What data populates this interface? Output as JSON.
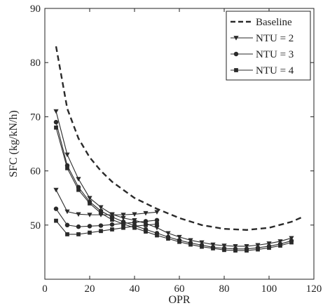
{
  "chart_data": {
    "type": "line",
    "xlabel": "OPR",
    "ylabel": "SFC (kg/kN/h)",
    "xlim": [
      0,
      120
    ],
    "ylim": [
      40,
      90
    ],
    "xticks": [
      0,
      20,
      40,
      60,
      80,
      100,
      120
    ],
    "yticks": [
      50,
      60,
      70,
      80,
      90
    ],
    "grid": false,
    "legend_position": "top-right",
    "colors": {
      "axis": "#222222",
      "lines": "#2a2a2a"
    },
    "series": [
      {
        "name": "Baseline",
        "style": "dashed",
        "marker": "none",
        "x": [
          5,
          10,
          15,
          20,
          25,
          30,
          40,
          50,
          60,
          70,
          80,
          90,
          100,
          110,
          115
        ],
        "y": [
          83,
          71.5,
          66,
          62.5,
          60,
          58,
          55,
          53,
          51.3,
          50,
          49.3,
          49.1,
          49.5,
          50.6,
          51.5
        ]
      },
      {
        "name": "NTU = 2",
        "style": "solid",
        "marker": "triangle-down",
        "x": [
          5,
          10,
          15,
          20,
          25,
          30,
          35,
          40,
          45,
          50,
          55,
          60,
          65,
          70,
          75,
          80,
          85,
          90,
          95,
          100,
          105,
          110
        ],
        "y": [
          71,
          63,
          58.5,
          55,
          53.3,
          52,
          51.3,
          50.9,
          50.3,
          49.5,
          48.5,
          47.8,
          47.2,
          46.8,
          46.4,
          46.2,
          46.1,
          46.1,
          46.3,
          46.6,
          47,
          47.6
        ]
      },
      {
        "name": "NTU = 3",
        "style": "solid",
        "marker": "circle",
        "x": [
          5,
          10,
          15,
          20,
          25,
          30,
          35,
          40,
          45,
          50,
          55,
          60,
          65,
          70,
          75,
          80,
          85,
          90,
          95,
          100,
          105,
          110
        ],
        "y": [
          69,
          61,
          57,
          54.3,
          52.6,
          51.5,
          50.6,
          49.9,
          49.2,
          48.5,
          47.8,
          47.2,
          46.7,
          46.3,
          45.9,
          45.7,
          45.6,
          45.6,
          45.8,
          46.1,
          46.5,
          47.1
        ]
      },
      {
        "name": "NTU = 4",
        "style": "solid",
        "marker": "square",
        "x": [
          5,
          10,
          15,
          20,
          25,
          30,
          35,
          40,
          45,
          50,
          55,
          60,
          65,
          70,
          75,
          80,
          85,
          90,
          95,
          100,
          105,
          110
        ],
        "y": [
          68,
          60.5,
          56.5,
          54,
          52.2,
          51,
          50.2,
          49.5,
          48.8,
          48.1,
          47.5,
          46.9,
          46.4,
          46,
          45.7,
          45.4,
          45.3,
          45.3,
          45.5,
          45.8,
          46.2,
          46.8
        ]
      },
      {
        "name": "",
        "style": "solid",
        "marker": "triangle-down",
        "x": [
          5,
          10,
          15,
          20,
          25,
          30,
          35,
          40,
          45,
          50
        ],
        "y": [
          56.5,
          52.5,
          52,
          51.9,
          51.9,
          51.9,
          51.9,
          52,
          52.2,
          52.4
        ]
      },
      {
        "name": "",
        "style": "solid",
        "marker": "circle",
        "x": [
          5,
          10,
          15,
          20,
          25,
          30,
          35,
          40,
          45,
          50
        ],
        "y": [
          53,
          50,
          49.7,
          49.8,
          49.9,
          50.1,
          50.3,
          50.5,
          50.7,
          50.9
        ]
      },
      {
        "name": "",
        "style": "solid",
        "marker": "square",
        "x": [
          5,
          10,
          15,
          20,
          25,
          30,
          35,
          40,
          45,
          50
        ],
        "y": [
          50.8,
          48.3,
          48.3,
          48.6,
          48.9,
          49.2,
          49.5,
          49.8,
          50,
          50.2
        ]
      }
    ]
  }
}
